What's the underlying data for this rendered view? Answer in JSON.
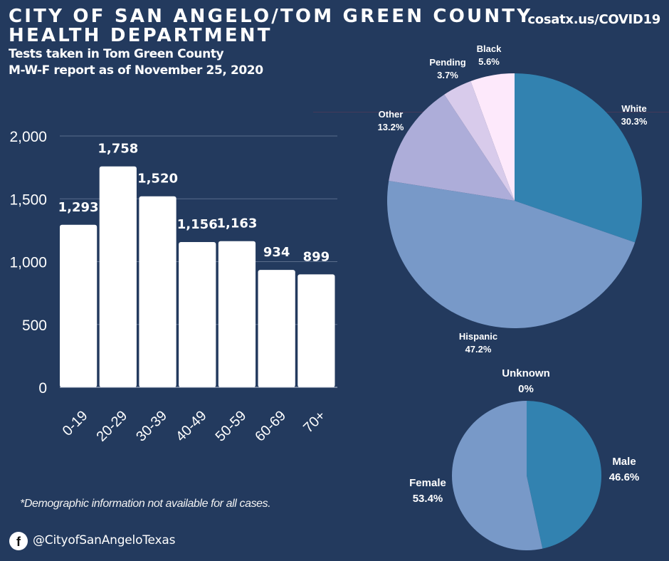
{
  "header": {
    "title_line1": "CITY OF SAN ANGELO/TOM GREEN COUNTY",
    "title_line2": "HEALTH DEPARTMENT",
    "subtitle_line1": "Tests taken in Tom Green County",
    "subtitle_line2": "M-W-F report as of November 25, 2020",
    "url": "cosatx.us/COVID19"
  },
  "footer": {
    "note": "*Demographic information not available for all cases.",
    "facebook_icon": "f",
    "handle": "@CityofSanAngeloTexas"
  },
  "colors": {
    "background": "#233a5e",
    "bar": "#ffffff",
    "white_slice": "#3282b0",
    "hispanic_slice": "#7899c8",
    "other_slice": "#adadd9",
    "pending_slice": "#d8cbeb",
    "black_slice": "#fde9fb",
    "male_slice": "#3282b0",
    "female_slice": "#7899c8"
  },
  "chart_data": [
    {
      "type": "bar",
      "title": "Tests by age group",
      "categories": [
        "0-19",
        "20-29",
        "30-39",
        "40-49",
        "50-59",
        "60-69",
        "70+"
      ],
      "values": [
        1293,
        1758,
        1520,
        1156,
        1163,
        934,
        899
      ],
      "value_labels": [
        "1,293",
        "1,758",
        "1,520",
        "1,156",
        "1,163",
        "934",
        "899"
      ],
      "yticks": [
        0,
        500,
        1000,
        1500,
        2000
      ],
      "ytick_labels": [
        "0",
        "500",
        "1,000",
        "1,500",
        "2,000"
      ],
      "ylim": [
        0,
        2000
      ],
      "grid": true,
      "xlabel": "",
      "ylabel": ""
    },
    {
      "type": "pie",
      "title": "Tests by race/ethnicity",
      "slices": [
        {
          "name": "White",
          "value": 30.3,
          "label": "30.3%"
        },
        {
          "name": "Hispanic",
          "value": 47.2,
          "label": "47.2%"
        },
        {
          "name": "Other",
          "value": 13.2,
          "label": "13.2%"
        },
        {
          "name": "Pending",
          "value": 3.7,
          "label": "3.7%"
        },
        {
          "name": "Black",
          "value": 5.6,
          "label": "5.6%"
        }
      ]
    },
    {
      "type": "pie",
      "title": "Tests by sex",
      "slices": [
        {
          "name": "Male",
          "value": 46.6,
          "label": "46.6%"
        },
        {
          "name": "Female",
          "value": 53.4,
          "label": "53.4%"
        },
        {
          "name": "Unknown",
          "value": 0,
          "label": "0%"
        }
      ]
    }
  ]
}
